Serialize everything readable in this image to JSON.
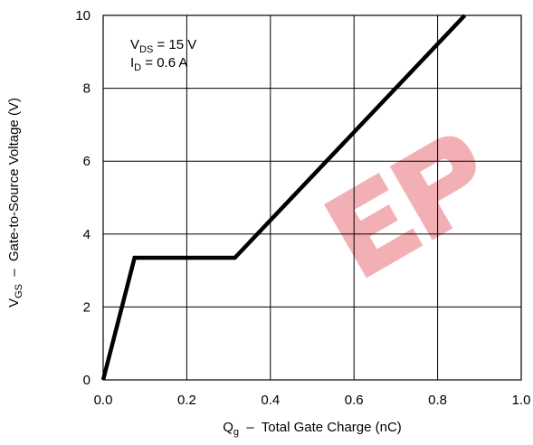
{
  "chart_data": {
    "type": "line",
    "title": "",
    "xlabel": {
      "main": "Q",
      "sub": "g",
      "rest": "  –  Total Gate Charge (nC)"
    },
    "ylabel": {
      "main": "V",
      "sub": "GS",
      "rest": "  –  Gate-to-Source Voltage (V)"
    },
    "xlim": [
      0,
      1.0
    ],
    "ylim": [
      0,
      10
    ],
    "x_ticks": [
      0.0,
      0.2,
      0.4,
      0.6,
      0.8,
      1.0
    ],
    "x_tick_labels": [
      "0.0",
      "0.2",
      "0.4",
      "0.6",
      "0.8",
      "1.0"
    ],
    "y_ticks": [
      0,
      2,
      4,
      6,
      8,
      10
    ],
    "y_tick_labels": [
      "0",
      "2",
      "4",
      "6",
      "8",
      "10"
    ],
    "grid": true,
    "series": [
      {
        "x": [
          0.0,
          0.075,
          0.315,
          0.865
        ],
        "y": [
          0.0,
          3.35,
          3.35,
          10.0
        ],
        "color": "#000000"
      }
    ],
    "annotations": [
      {
        "main": "V",
        "sub": "DS",
        "rest": " = 15 V"
      },
      {
        "main": "I",
        "sub": "D",
        "rest": " = 0.6 A"
      }
    ],
    "watermark_color": "#e8707a"
  }
}
